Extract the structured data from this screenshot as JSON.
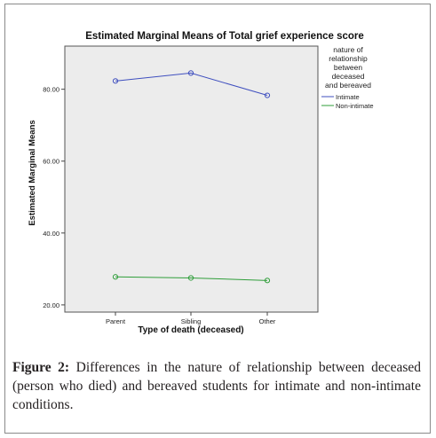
{
  "figure": {
    "caption_label": "Figure 2:",
    "caption_text": "Differences in the nature of relationship between deceased (person who died) and bereaved students for intimate and non-intimate conditions."
  },
  "chart_data": {
    "type": "line",
    "title": "Estimated Marginal Means of Total grief experience score",
    "xlabel": "Type of death (deceased)",
    "ylabel": "Estimated Marginal Means",
    "categories": [
      "Parent",
      "Sibling",
      "Other"
    ],
    "yticks": [
      20,
      40,
      60,
      80
    ],
    "ytick_labels": [
      "20.00",
      "40.00",
      "60.00",
      "80.00"
    ],
    "ylim": [
      18,
      92
    ],
    "grid": false,
    "legend": {
      "title_lines": [
        "nature of",
        "relationship",
        "between",
        "deceased",
        "and bereaved"
      ],
      "placement": "right"
    },
    "series": [
      {
        "name": "Intimate",
        "values": [
          82.3,
          84.5,
          78.3
        ],
        "color": "#3f4fbf"
      },
      {
        "name": "Non-intimate",
        "values": [
          27.8,
          27.5,
          26.8
        ],
        "color": "#2f9e3a"
      }
    ],
    "colors": {
      "plot_bg": "#ececec",
      "plot_border": "#555555",
      "text": "#111111"
    }
  }
}
